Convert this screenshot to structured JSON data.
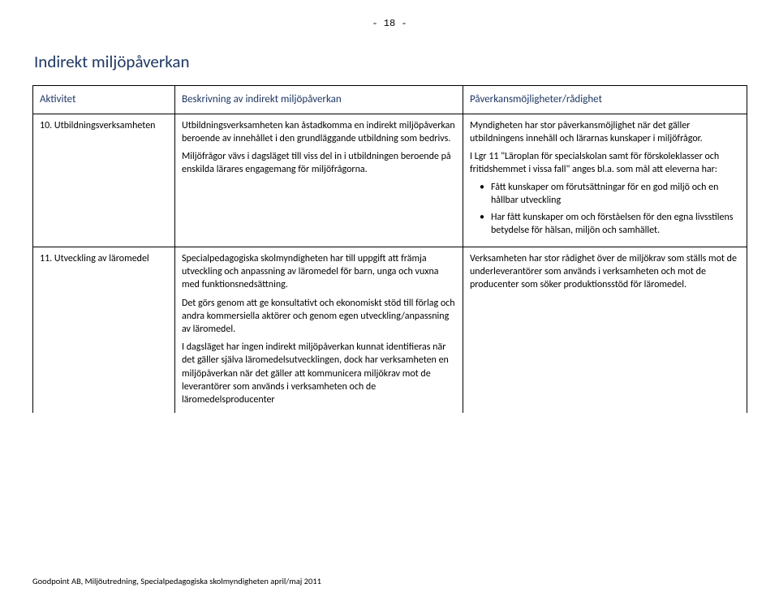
{
  "page_number_text": "- 18 -",
  "heading": "Indirekt miljöpåverkan",
  "columns": {
    "c1": "Aktivitet",
    "c2": "Beskrivning av indirekt miljöpåverkan",
    "c3": "Påverkansmöjligheter/rådighet"
  },
  "row1": {
    "activity": "10. Utbildningsverksamheten",
    "desc_p1": "Utbildningsverksamheten kan åstadkomma en indirekt miljöpåverkan beroende av innehållet i den grundläggande utbildning som bedrivs.",
    "desc_p2": "Miljöfrågor vävs i dagsläget till viss del in i utbildningen beroende på enskilda lärares engagemang för miljöfrågorna.",
    "imp_p1": "Myndigheten har stor påverkansmöjlighet när det gäller utbildningens innehåll och lärarnas kunskaper i miljöfrågor.",
    "imp_p2": " I Lgr 11 \"Läroplan för specialskolan samt för förskoleklasser och fritidshemmet i vissa fall\" anges bl.a. som mål att eleverna har:",
    "imp_li1": "Fått kunskaper om förutsättningar för en god miljö och en hållbar utveckling",
    "imp_li2": "Har fått kunskaper om och förståelsen för den egna livsstilens betydelse för hälsan, miljön och samhället."
  },
  "row2": {
    "activity": "11. Utveckling av läromedel",
    "desc_p1": "Specialpedagogiska skolmyndigheten har till uppgift att främja utveckling och anpassning av läromedel för barn, unga och vuxna med funktionsnedsättning.",
    "desc_p2": "Det görs genom att ge konsultativt och ekonomiskt stöd till förlag och andra kommersiella aktörer och genom egen utveckling/anpassning av läromedel.",
    "desc_p3": "I dagsläget har ingen indirekt miljöpåverkan kunnat identifieras när det gäller själva läromedelsutvecklingen, dock har verksamheten en miljöpåverkan när det gäller att kommunicera miljökrav mot de leverantörer som används i verksamheten och de läromedelsproducenter",
    "imp_p1": "Verksamheten har stor rådighet över de miljökrav som ställs mot de underleverantörer som används i verksamheten och mot de producenter som söker produktionsstöd för läromedel."
  },
  "footer": "Goodpoint AB, Miljöutredning, Specialpedagogiska skolmyndigheten april/maj 2011"
}
